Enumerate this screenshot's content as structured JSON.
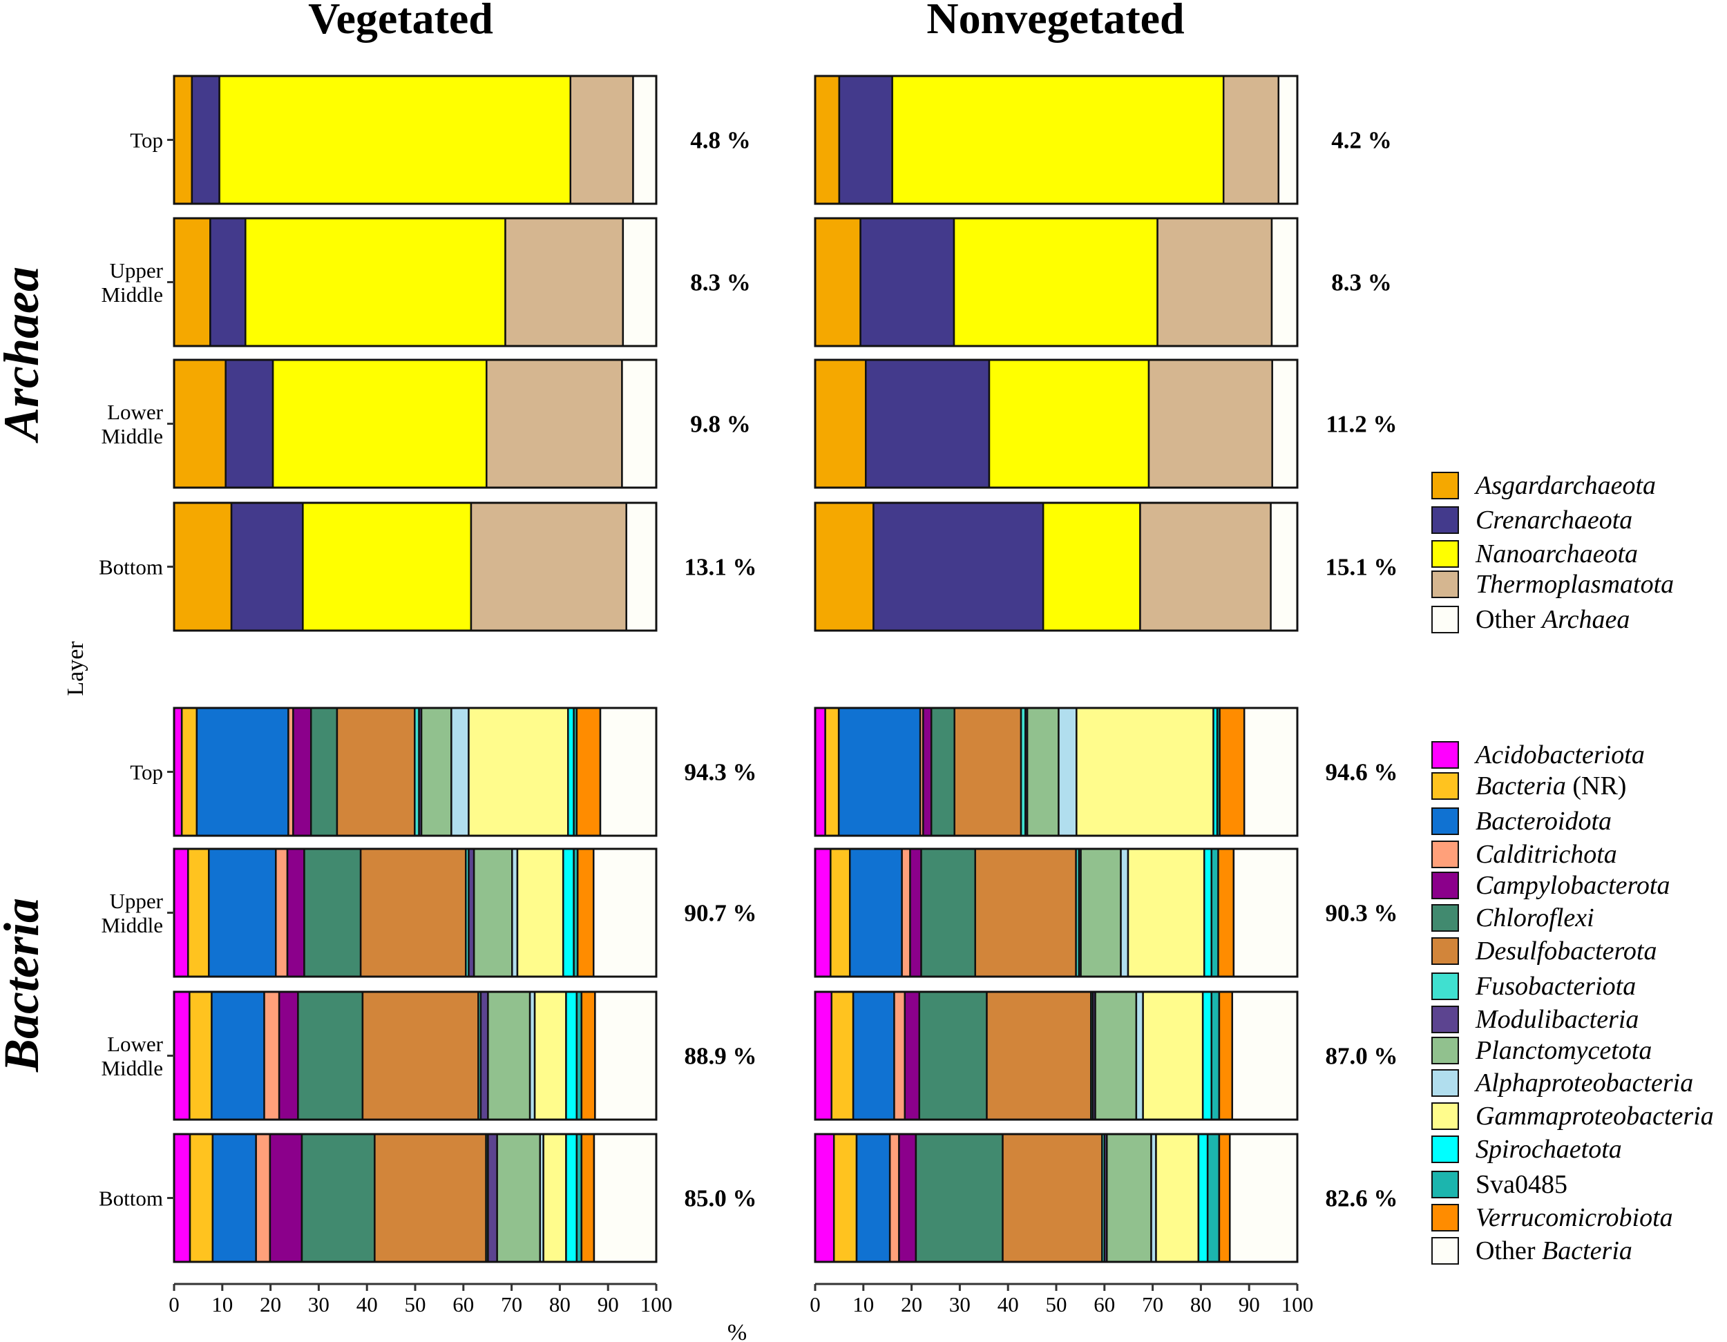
{
  "chart_data": {
    "type": "bar",
    "orientation": "horizontal-stacked",
    "panel_titles": [
      "Vegetated",
      "Nonvegetated"
    ],
    "row_groups": [
      "Archaea",
      "Bacteria"
    ],
    "ylabel": "Layer",
    "xlabel": "%",
    "xlim": [
      0,
      100
    ],
    "xticks": [
      "0",
      "10",
      "20",
      "30",
      "40",
      "50",
      "60",
      "70",
      "80",
      "90",
      "100"
    ],
    "categories": [
      "Top",
      "Upper Middle",
      "Lower Middle",
      "Bottom"
    ],
    "archaea": {
      "taxa": [
        "Asgardarchaeota",
        "Crenarchaeota",
        "Nanoarchaeota",
        "Thermoplasmatota",
        "Other Archaea"
      ],
      "colors": [
        "#F5A800",
        "#433A8C",
        "#FFFF00",
        "#D5B690",
        "#FEFEF8"
      ],
      "Vegetated": {
        "percent_labels": [
          "4.8 %",
          "8.3 %",
          "9.8 %",
          "13.1 %"
        ],
        "values": [
          [
            3.7,
            5.7,
            72.8,
            13.0,
            4.8
          ],
          [
            7.5,
            7.3,
            53.9,
            24.4,
            6.9
          ],
          [
            10.7,
            9.8,
            44.3,
            28.1,
            7.1
          ],
          [
            11.9,
            14.8,
            34.9,
            32.2,
            6.2
          ]
        ]
      },
      "Nonvegetated": {
        "percent_labels": [
          "4.2 %",
          "8.3 %",
          "11.2 %",
          "15.1 %"
        ],
        "values": [
          [
            5.0,
            11.0,
            68.7,
            11.4,
            3.9
          ],
          [
            9.4,
            19.4,
            42.2,
            23.7,
            5.3
          ],
          [
            10.5,
            25.6,
            33.1,
            25.6,
            5.2
          ],
          [
            12.1,
            35.2,
            20.1,
            27.1,
            5.5
          ]
        ]
      }
    },
    "bacteria": {
      "taxa": [
        "Acidobacteriota",
        "Bacteria (NR)",
        "Bacteroidota",
        "Calditrichota",
        "Campylobacterota",
        "Chloroflexi",
        "Desulfobacterota",
        "Fusobacteriota",
        "Modulibacteria",
        "Planctomycetota",
        "Alphaproteobacteria",
        "Gammaproteobacteria",
        "Spirochaetota",
        "Sva0485",
        "Verrucomicrobiota",
        "Other Bacteria"
      ],
      "colors": [
        "#FF00FF",
        "#FFC31F",
        "#1072D2",
        "#FFA07A",
        "#8B008B",
        "#418A6F",
        "#D2853A",
        "#40E0D0",
        "#5C4490",
        "#91C18E",
        "#B1DEEE",
        "#FFFC8C",
        "#00FFFF",
        "#1CB5AE",
        "#FF8C00",
        "#FEFEF8"
      ],
      "Vegetated": {
        "percent_labels": [
          "94.3 %",
          "90.7 %",
          "88.9 %",
          "85.0 %"
        ],
        "values": [
          [
            1.6,
            3.1,
            19.0,
            1.0,
            3.7,
            5.4,
            16.1,
            0.9,
            0.5,
            6.2,
            3.6,
            20.6,
            1.2,
            0.6,
            4.9,
            11.6
          ],
          [
            2.9,
            4.3,
            13.9,
            2.4,
            3.5,
            11.7,
            21.8,
            0.6,
            1.1,
            7.9,
            1.1,
            9.5,
            2.2,
            0.8,
            3.3,
            13.0
          ],
          [
            3.2,
            4.6,
            10.9,
            3.1,
            3.9,
            13.4,
            24.0,
            0.5,
            1.5,
            8.7,
            1.0,
            6.5,
            2.2,
            1.0,
            2.8,
            12.7
          ],
          [
            3.3,
            4.7,
            9.0,
            2.9,
            6.6,
            15.1,
            23.1,
            0.4,
            1.9,
            8.9,
            0.7,
            4.7,
            2.2,
            1.0,
            2.6,
            12.9
          ]
        ]
      },
      "Nonvegetated": {
        "percent_labels": [
          "94.6 %",
          "90.3 %",
          "87.0 %",
          "82.6 %"
        ],
        "values": [
          [
            2.1,
            2.8,
            16.9,
            0.6,
            1.7,
            4.8,
            13.8,
            0.9,
            0.4,
            6.5,
            3.7,
            28.4,
            0.8,
            0.5,
            5.1,
            11.0
          ],
          [
            3.2,
            4.0,
            10.8,
            1.7,
            2.3,
            11.2,
            20.9,
            0.6,
            0.4,
            8.3,
            1.5,
            15.8,
            1.5,
            1.4,
            3.2,
            13.2
          ],
          [
            3.4,
            4.5,
            8.5,
            2.2,
            3.0,
            14.0,
            21.6,
            0.4,
            0.5,
            8.5,
            1.4,
            12.4,
            1.8,
            1.6,
            2.7,
            13.5
          ],
          [
            3.9,
            4.7,
            6.9,
            1.9,
            3.5,
            18.0,
            20.6,
            0.5,
            0.5,
            9.2,
            1.0,
            8.8,
            1.9,
            2.4,
            2.2,
            14.0
          ]
        ]
      }
    }
  }
}
